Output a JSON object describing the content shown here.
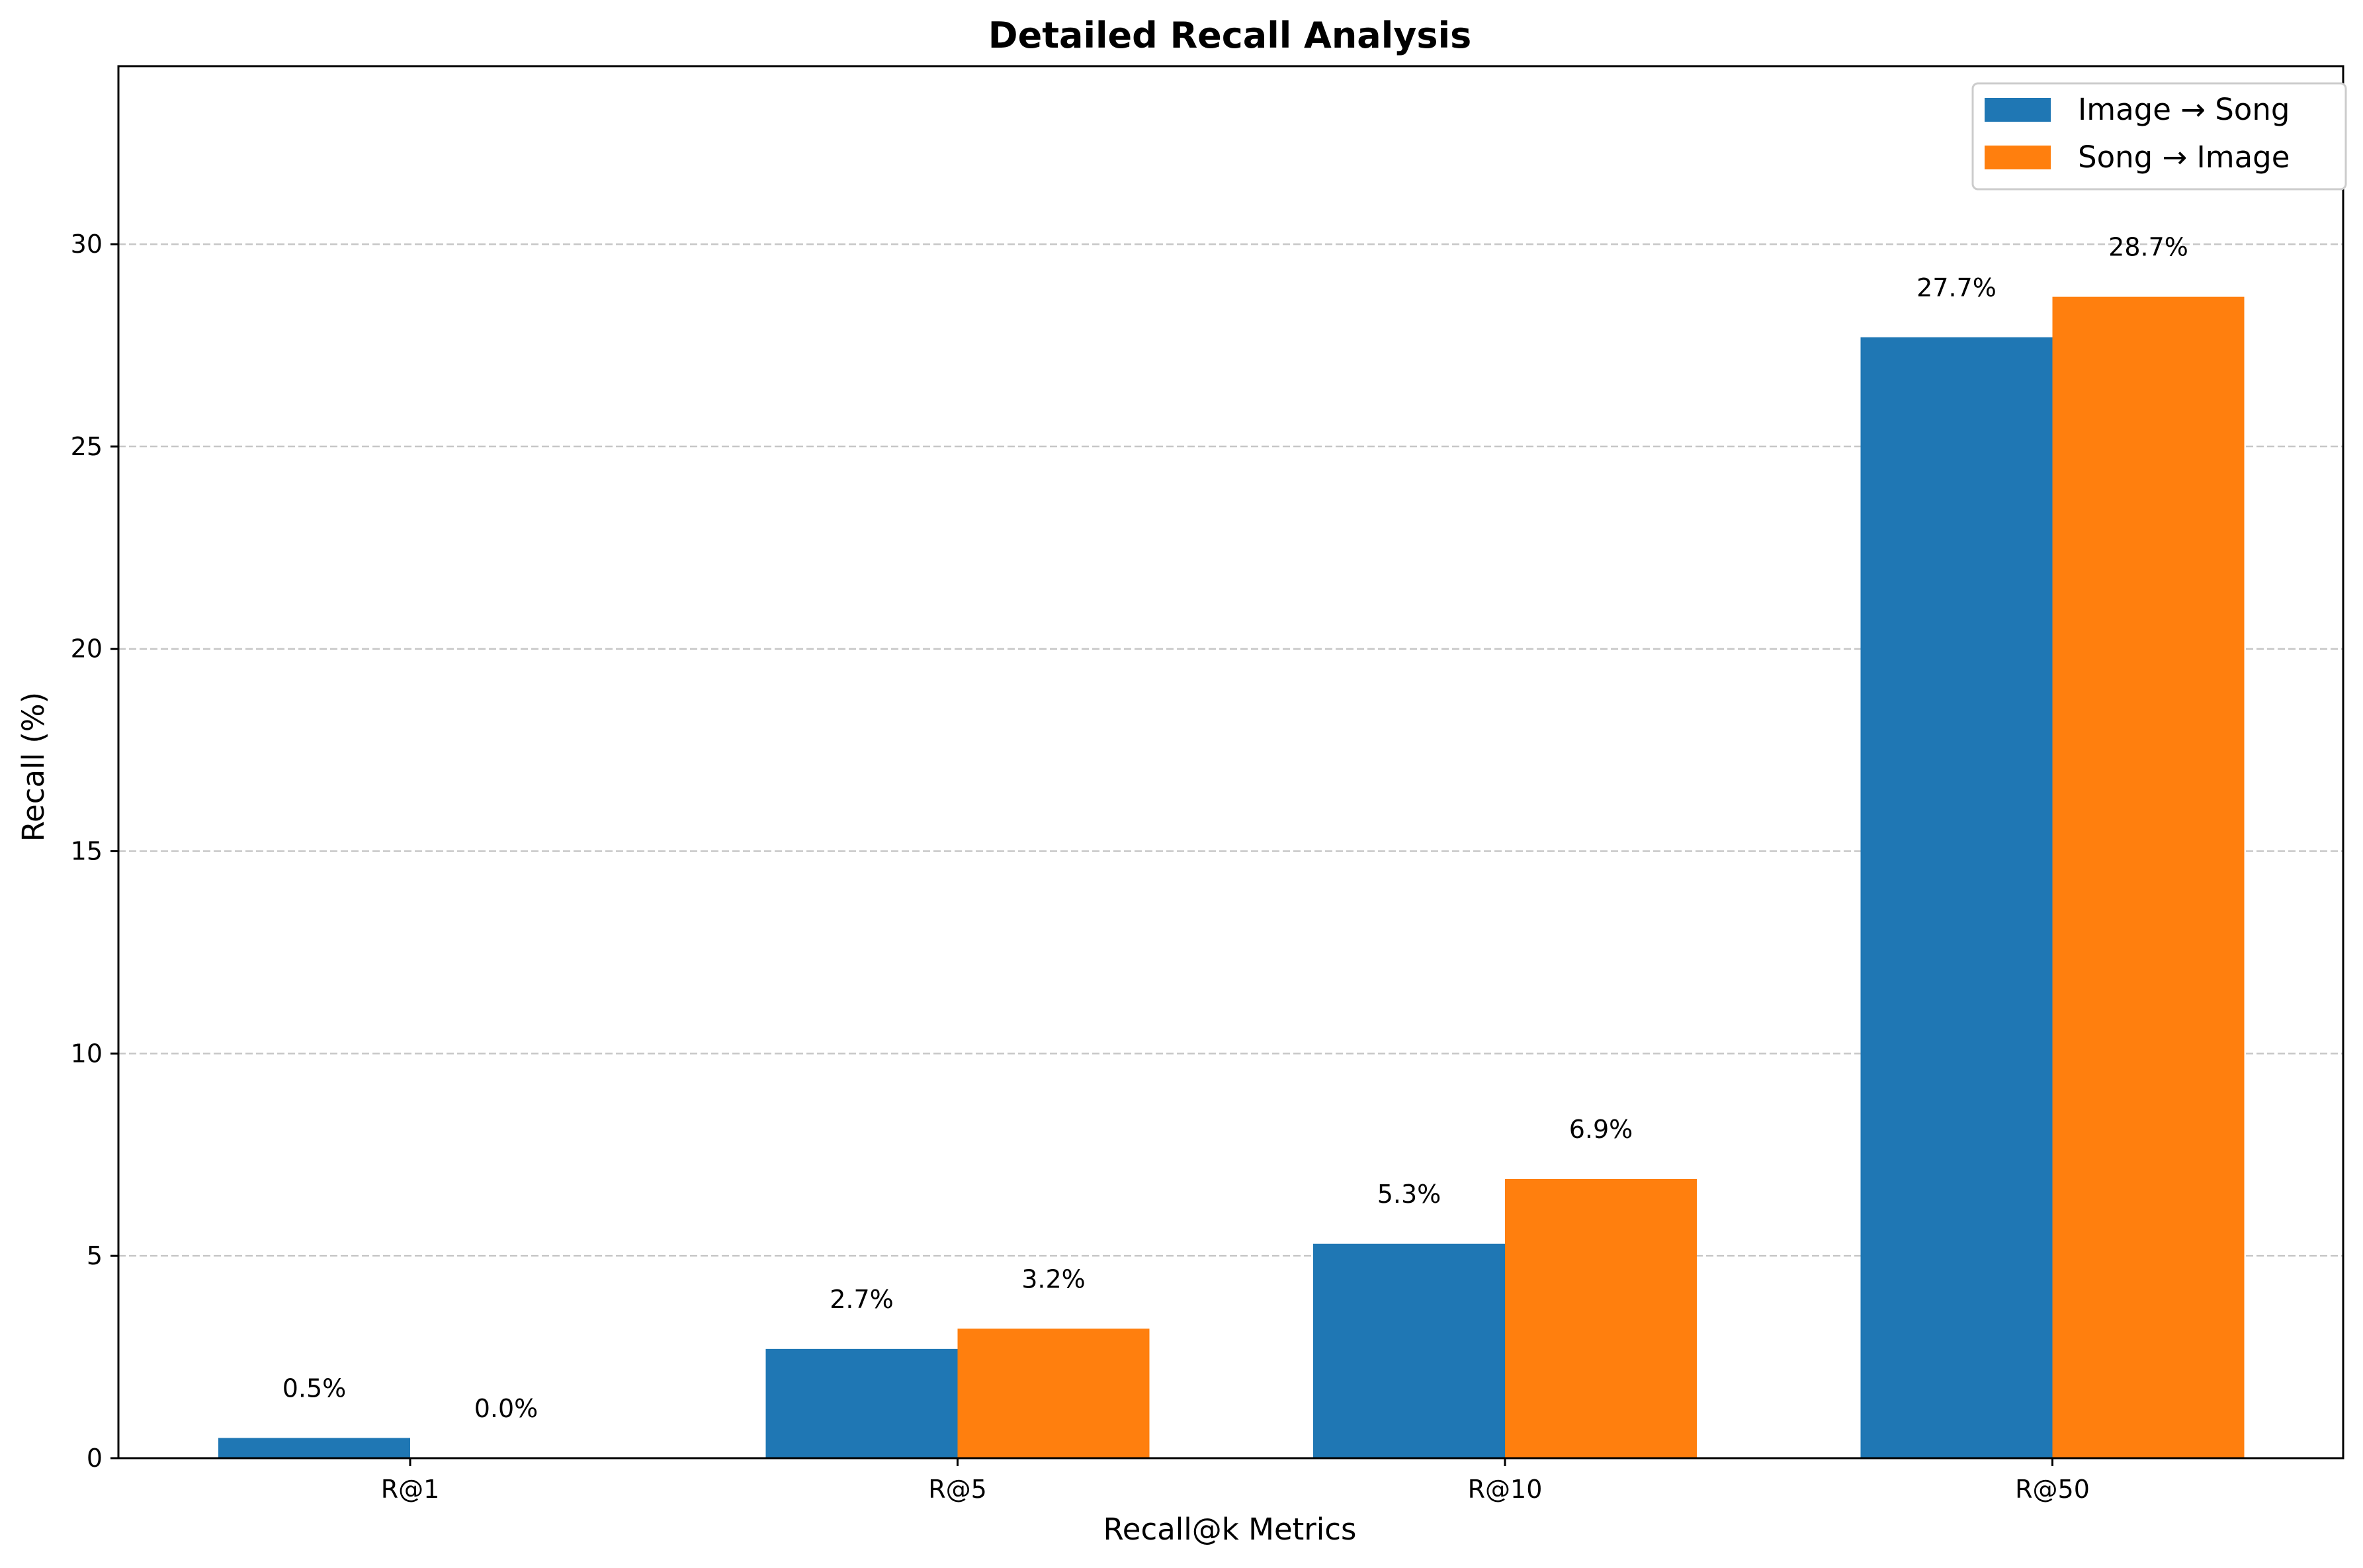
{
  "chart_data": {
    "type": "bar",
    "title": "Detailed Recall Analysis",
    "xlabel": "Recall@k Metrics",
    "ylabel": "Recall (%)",
    "categories": [
      "R@1",
      "R@5",
      "R@10",
      "R@50"
    ],
    "series": [
      {
        "name": "Image → Song",
        "color": "#1f77b4",
        "values": [
          0.5,
          2.7,
          5.3,
          27.7
        ],
        "labels": [
          "0.5%",
          "2.7%",
          "5.3%",
          "27.7%"
        ]
      },
      {
        "name": "Song → Image",
        "color": "#ff7f0e",
        "values": [
          0.0,
          3.2,
          6.9,
          28.7
        ],
        "labels": [
          "0.0%",
          "3.2%",
          "6.9%",
          "28.7%"
        ]
      }
    ],
    "ylim": [
      0,
      34.4
    ],
    "yticks": [
      0,
      5,
      10,
      15,
      20,
      25,
      30
    ],
    "grid": "horizontal dashed",
    "legend_position": "top-right"
  }
}
